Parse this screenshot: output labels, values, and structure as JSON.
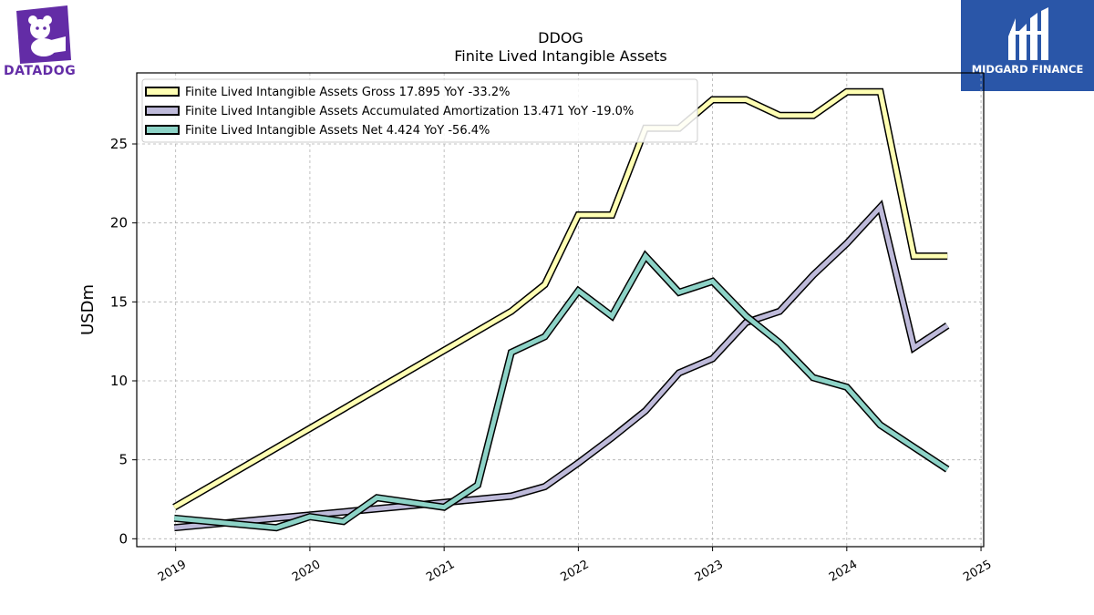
{
  "header": {
    "ticker": "DDOG",
    "title": "Finite Lived Intangible Assets"
  },
  "logos": {
    "left_text": "DATADOG",
    "right_text": "MIDGARD FINANCE",
    "left_color": "#632ca6",
    "right_color": "#2a56a8"
  },
  "chart_data": {
    "type": "line",
    "title": "DDOG\nFinite Lived Intangible Assets",
    "ylabel": "USDm",
    "xlabel": "",
    "ylim": [
      -0.5,
      29.5
    ],
    "xlim": [
      2018.71,
      2025.02
    ],
    "grid": true,
    "legend_position": "top-left",
    "x_ticks": [
      2019,
      2020,
      2021,
      2022,
      2023,
      2024,
      2025
    ],
    "x_tick_labels": [
      "2019",
      "2020",
      "2021",
      "2022",
      "2023",
      "2024",
      "2025"
    ],
    "y_ticks": [
      0,
      5,
      10,
      15,
      20,
      25
    ],
    "y_tick_labels": [
      "0",
      "5",
      "10",
      "15",
      "20",
      "25"
    ],
    "series": [
      {
        "name": "Finite Lived Intangible Assets Gross",
        "legend": "Finite Lived Intangible Assets Gross  17.895 YoY -33.2%",
        "color": "#ffffb3",
        "x": [
          2018.99,
          2021.5,
          2021.75,
          2022.0,
          2022.25,
          2022.5,
          2022.75,
          2023.0,
          2023.25,
          2023.5,
          2023.75,
          2024.0,
          2024.25,
          2024.5,
          2024.75
        ],
        "y": [
          2.0,
          14.4,
          16.1,
          20.5,
          20.5,
          26.0,
          26.0,
          27.8,
          27.8,
          26.8,
          26.8,
          28.3,
          28.3,
          17.9,
          17.9
        ]
      },
      {
        "name": "Finite Lived Intangible Assets Accumulated Amortization",
        "legend": "Finite Lived Intangible Assets Accumulated Amortization  13.471 YoY -19.0%",
        "color": "#bebada",
        "x": [
          2018.99,
          2021.0,
          2021.25,
          2021.5,
          2021.75,
          2022.0,
          2022.25,
          2022.5,
          2022.75,
          2023.0,
          2023.25,
          2023.5,
          2023.75,
          2024.0,
          2024.25,
          2024.5,
          2024.75
        ],
        "y": [
          0.7,
          2.3,
          2.5,
          2.7,
          3.3,
          4.8,
          6.4,
          8.1,
          10.5,
          11.4,
          13.7,
          14.4,
          16.7,
          18.7,
          21.0,
          12.1,
          13.5
        ]
      },
      {
        "name": "Finite Lived Intangible Assets Net",
        "legend": "Finite Lived Intangible Assets Net  4.424 YoY -56.4%",
        "color": "#8dd3c7",
        "x": [
          2018.99,
          2019.75,
          2020.0,
          2020.25,
          2020.5,
          2021.0,
          2021.25,
          2021.5,
          2021.75,
          2022.0,
          2022.25,
          2022.5,
          2022.75,
          2023.0,
          2023.25,
          2023.5,
          2023.75,
          2024.0,
          2024.25,
          2024.5,
          2024.75
        ],
        "y": [
          1.3,
          0.7,
          1.4,
          1.1,
          2.6,
          2.0,
          3.4,
          11.8,
          12.8,
          15.7,
          14.1,
          17.9,
          15.6,
          16.3,
          14.1,
          12.4,
          10.2,
          9.6,
          7.2,
          5.8,
          4.4
        ]
      }
    ]
  }
}
